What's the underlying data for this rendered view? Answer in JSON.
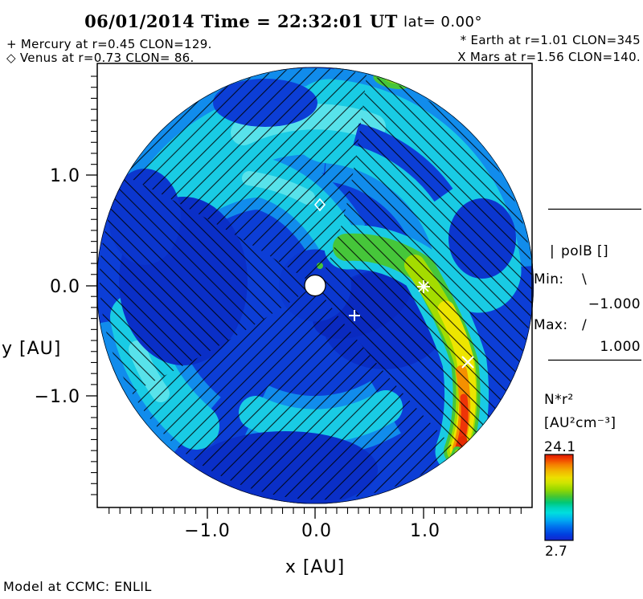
{
  "title": {
    "datetime": "06/01/2014 Time = 22:32:01 UT",
    "lat": "lat= 0.00°"
  },
  "legend_planets": {
    "mercury": "+ Mercury at r=0.45 CLON=129.",
    "venus": "◇ Venus at r=0.73 CLON= 86.",
    "earth": "* Earth at r=1.01 CLON=345",
    "mars": "X Mars at r=1.56 CLON=140."
  },
  "axes": {
    "x_label": "x [AU]",
    "y_label": "y [AU]",
    "x_ticks": [
      "−1.0",
      "0.0",
      "1.0"
    ],
    "y_ticks": [
      "1.0",
      "0.0",
      "−1.0"
    ]
  },
  "polb_panel": {
    "bar_glyph": "|",
    "title": "polB []",
    "min_label": "Min:",
    "min_glyph": "\\",
    "min_value": "−1.000",
    "max_label": "Max:",
    "max_glyph": "/",
    "max_value": "1.000"
  },
  "colorbar": {
    "quantity": "N*r²",
    "units": "[AU²cm⁻³]",
    "max": "24.1",
    "min": "2.7"
  },
  "footer": "Model at CCMC: ENLIL",
  "chart_data": {
    "type": "heatmap",
    "projection": "heliospheric equatorial cut (polar disk)",
    "model": "ENLIL",
    "source_label": "Model at CCMC: ENLIL",
    "datetime_ut": "06/01/2014 22:32:01",
    "latitude_deg": 0.0,
    "quantity": "N*r²",
    "units": "AU²cm⁻³",
    "value_min": 2.7,
    "value_max": 24.1,
    "polB": {
      "label": "polB []",
      "min": -1.0,
      "max": 1.0,
      "neg_hatch": "\\",
      "pos_hatch": "/"
    },
    "xlabel": "x [AU]",
    "ylabel": "y [AU]",
    "xlim": [
      -2.0,
      2.0
    ],
    "ylim": [
      -2.0,
      2.0
    ],
    "x_ticks": [
      -1.0,
      0.0,
      1.0
    ],
    "y_ticks": [
      -1.0,
      0.0,
      1.0
    ],
    "minor_tick_step_au": 0.1,
    "grid": false,
    "bodies": [
      {
        "name": "Sun",
        "symbol": "filled-circle",
        "x_au": 0.0,
        "y_au": 0.0
      },
      {
        "name": "Mercury",
        "symbol": "+",
        "r_au": 0.45,
        "clon_deg": 129,
        "x_au": 0.36,
        "y_au": -0.28
      },
      {
        "name": "Venus",
        "symbol": "◇",
        "r_au": 0.73,
        "clon_deg": 86,
        "x_au": 0.04,
        "y_au": 0.73
      },
      {
        "name": "Earth",
        "symbol": "*",
        "r_au": 1.01,
        "clon_deg": 345,
        "x_au": 1.0,
        "y_au": -0.01
      },
      {
        "name": "Mars",
        "symbol": "X",
        "r_au": 1.56,
        "clon_deg": 140,
        "x_au": 1.4,
        "y_au": -0.7
      }
    ],
    "features": [
      "bright corotating high-density spiral arm on right side peaking near N*r²≈24 around (1.3,-1.5) AU (red)",
      "cyan spiral density arms (~10) wrapping counterclockwise over the top and lower-left",
      "low-density dark blue regions (~3-5) on left and below Earth",
      "black diagonal hatching over disk showing magnetic polarity sectors (\\ = -1, / = +1)"
    ]
  }
}
